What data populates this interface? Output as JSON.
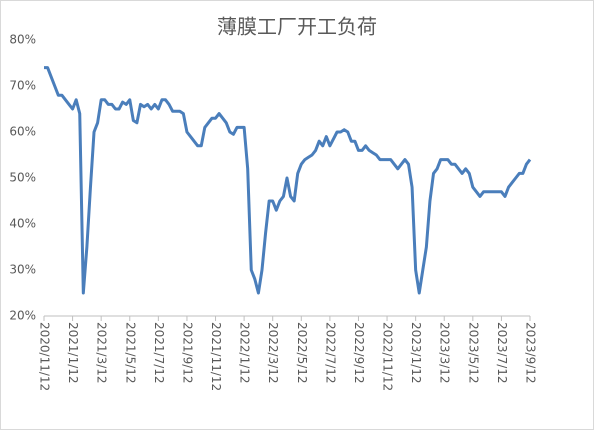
{
  "chart_data": {
    "type": "line",
    "title": "薄膜工厂开工负荷",
    "categories": [
      "2020/11/12",
      null,
      null,
      null,
      null,
      null,
      null,
      null,
      "2021/1/12",
      null,
      null,
      null,
      null,
      null,
      null,
      null,
      "2021/3/12",
      null,
      null,
      null,
      null,
      null,
      null,
      null,
      "2021/5/12",
      null,
      null,
      null,
      null,
      null,
      null,
      null,
      "2021/7/12",
      null,
      null,
      null,
      null,
      null,
      null,
      null,
      "2021/9/12",
      null,
      null,
      null,
      null,
      null,
      null,
      null,
      "2021/11/12",
      null,
      null,
      null,
      null,
      null,
      null,
      null,
      "2022/1/12",
      null,
      null,
      null,
      null,
      null,
      null,
      null,
      "2022/3/12",
      null,
      null,
      null,
      null,
      null,
      null,
      null,
      "2022/5/12",
      null,
      null,
      null,
      null,
      null,
      null,
      null,
      "2022/7/12",
      null,
      null,
      null,
      null,
      null,
      null,
      null,
      "2022/9/12",
      null,
      null,
      null,
      null,
      null,
      null,
      null,
      "2022/11/12",
      null,
      null,
      null,
      null,
      null,
      null,
      null,
      "2023/1/12",
      null,
      null,
      null,
      null,
      null,
      null,
      null,
      "2023/3/12",
      null,
      null,
      null,
      null,
      null,
      null,
      null,
      "2023/5/12",
      null,
      null,
      null,
      null,
      null,
      null,
      null,
      "2023/7/12",
      null,
      null,
      null,
      null,
      null,
      null,
      null,
      "2023/9/12"
    ],
    "values": [
      74,
      74,
      72,
      70,
      68,
      68,
      67,
      66,
      65,
      67,
      64,
      25,
      35,
      48,
      60,
      62,
      67,
      67,
      66,
      66,
      65,
      65,
      66.5,
      66,
      67,
      62.5,
      62,
      66,
      65.5,
      66,
      65,
      66,
      65,
      67,
      67,
      66,
      64.5,
      64.5,
      64.5,
      64,
      60,
      59,
      58,
      57,
      57,
      61,
      62,
      63,
      63,
      64,
      63,
      62,
      60,
      59.5,
      61,
      61,
      61,
      52,
      30,
      28,
      25,
      30,
      38,
      45,
      45,
      43,
      45,
      46,
      50,
      46,
      45,
      51,
      53,
      54,
      54.5,
      55,
      56,
      58,
      57,
      59,
      57,
      58.5,
      60,
      60,
      60.5,
      60,
      58,
      58,
      56,
      56,
      57,
      56,
      55.5,
      55,
      54,
      54,
      54,
      54,
      53,
      52,
      53,
      54,
      53,
      48,
      30,
      25,
      30,
      35,
      45,
      51,
      52,
      54,
      54,
      54,
      53,
      53,
      52,
      51,
      52,
      51,
      48,
      47,
      46,
      47,
      47,
      47,
      47,
      47,
      47,
      46,
      48,
      49,
      50,
      51,
      51,
      53,
      54
    ],
    "color": "#4a7ebb",
    "ylim": [
      20,
      80
    ],
    "yticks": [
      {
        "value": 20,
        "label": "20%"
      },
      {
        "value": 30,
        "label": "30%"
      },
      {
        "value": 40,
        "label": "40%"
      },
      {
        "value": 50,
        "label": "50%"
      },
      {
        "value": 60,
        "label": "60%"
      },
      {
        "value": 70,
        "label": "70%"
      },
      {
        "value": 80,
        "label": "80%"
      }
    ],
    "grid": false
  }
}
